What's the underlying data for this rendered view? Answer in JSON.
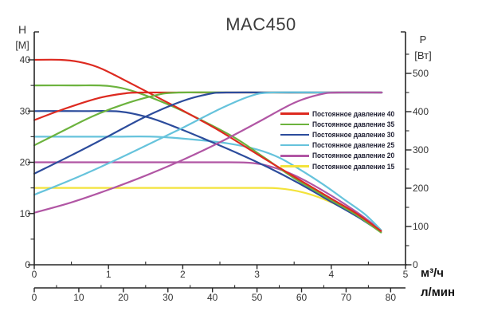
{
  "title": "MAC450",
  "axis_labels": {
    "left_symbol": "H",
    "left_unit": "[М]",
    "right_symbol": "P",
    "right_unit": "[Вт]",
    "bottom_primary_unit": "м³/ч",
    "bottom_secondary_unit": "л/мин"
  },
  "legend": [
    {
      "label": "Постоянное давление 40",
      "color": "#dd2a20"
    },
    {
      "label": "Постоянное давление 35",
      "color": "#6cb33e"
    },
    {
      "label": "Постоянное давление 30",
      "color": "#2c4c9c"
    },
    {
      "label": "Постоянное давление 25",
      "color": "#66c3dc"
    },
    {
      "label": "Постоянное давление 20",
      "color": "#b156a4"
    },
    {
      "label": "Постоянное давление 15",
      "color": "#f3e33b"
    }
  ],
  "colors": {
    "axis": "#262626",
    "tick_label": "#333333"
  },
  "chart_data": {
    "type": "line",
    "title": "MAC450",
    "x_axis": {
      "label": "м³/ч",
      "range": [
        0,
        5
      ],
      "major_ticks": [
        0,
        1,
        2,
        3,
        4,
        5
      ],
      "minor_ticks": [
        0.5,
        1.5,
        2.5,
        3.5,
        4.5
      ]
    },
    "x_axis_secondary": {
      "label": "л/мин",
      "range": [
        0,
        83.3
      ],
      "major_ticks": [
        0,
        10,
        20,
        30,
        40,
        50,
        60,
        70,
        80
      ],
      "minor_ticks": [
        5,
        15,
        25,
        35,
        45,
        55,
        65,
        75
      ]
    },
    "y_left": {
      "label": "H [М]",
      "range": [
        0,
        45.5
      ],
      "major_ticks": [
        0,
        10,
        20,
        30,
        40
      ],
      "minor_ticks": [
        5,
        15,
        25,
        35
      ]
    },
    "y_right": {
      "label": "P [Вт]",
      "range": [
        0,
        608
      ],
      "major_ticks": [
        0,
        100,
        200,
        300,
        400,
        500
      ],
      "minor_ticks": [
        50,
        150,
        250,
        350,
        450,
        550
      ]
    },
    "grid": false,
    "legend_position": "inside-right",
    "series": [
      {
        "name": "Напор, давление 15",
        "legend": "Постоянное давление 15",
        "color": "#f3e33b",
        "axis": "H",
        "points": [
          [
            0,
            15
          ],
          [
            1.2,
            15
          ],
          [
            2.4,
            15
          ],
          [
            3.0,
            15
          ],
          [
            3.3,
            14.9
          ],
          [
            3.6,
            14.2
          ],
          [
            3.9,
            12.8
          ],
          [
            4.2,
            10.8
          ],
          [
            4.45,
            8.8
          ],
          [
            4.67,
            6.6
          ]
        ]
      },
      {
        "name": "Напор, давление 20",
        "legend": "Постоянное давление 20",
        "color": "#b156a4",
        "axis": "H",
        "points": [
          [
            0,
            20
          ],
          [
            1.2,
            20
          ],
          [
            2.4,
            20
          ],
          [
            2.9,
            19.9
          ],
          [
            3.2,
            19.1
          ],
          [
            3.5,
            17.5
          ],
          [
            3.8,
            15.2
          ],
          [
            4.1,
            12.6
          ],
          [
            4.4,
            9.7
          ],
          [
            4.67,
            6.7
          ]
        ]
      },
      {
        "name": "Напор, давление 25",
        "legend": "Постоянное давление 25",
        "color": "#66c3dc",
        "axis": "H",
        "points": [
          [
            0,
            25
          ],
          [
            1.0,
            25
          ],
          [
            1.6,
            25
          ],
          [
            2.1,
            24.5
          ],
          [
            2.6,
            23.7
          ],
          [
            3.0,
            22.5
          ],
          [
            3.3,
            20.9
          ],
          [
            3.6,
            18.4
          ],
          [
            3.9,
            15.6
          ],
          [
            4.2,
            12.5
          ],
          [
            4.45,
            9.9
          ],
          [
            4.67,
            6.8
          ]
        ]
      },
      {
        "name": "Напор, давление 30",
        "legend": "Постоянное давление 30",
        "color": "#2c4c9c",
        "axis": "H",
        "points": [
          [
            0,
            30
          ],
          [
            0.65,
            30
          ],
          [
            1.15,
            29.9
          ],
          [
            1.55,
            28.7
          ],
          [
            1.95,
            26.6
          ],
          [
            2.35,
            24.2
          ],
          [
            2.75,
            21.7
          ],
          [
            3.15,
            19.0
          ],
          [
            3.55,
            16.0
          ],
          [
            4,
            12.3
          ],
          [
            4.35,
            9.4
          ],
          [
            4.67,
            6.4
          ]
        ]
      },
      {
        "name": "Напор, давление 35",
        "legend": "Постоянное давление 35",
        "color": "#6cb33e",
        "axis": "H",
        "points": [
          [
            0,
            35
          ],
          [
            0.55,
            35
          ],
          [
            1.0,
            34.9
          ],
          [
            1.35,
            33.8
          ],
          [
            1.8,
            31.3
          ],
          [
            2.2,
            28.6
          ],
          [
            2.7,
            24.8
          ],
          [
            3.1,
            20.9
          ],
          [
            3.5,
            16.9
          ],
          [
            4,
            12.6
          ],
          [
            4.35,
            9.6
          ],
          [
            4.67,
            6.3
          ]
        ]
      },
      {
        "name": "Напор, давление 40",
        "legend": "Постоянное давление 40",
        "color": "#dd2a20",
        "axis": "H",
        "points": [
          [
            0,
            40
          ],
          [
            0.35,
            40
          ],
          [
            0.6,
            39.6
          ],
          [
            0.85,
            38.6
          ],
          [
            1.1,
            36.9
          ],
          [
            1.5,
            33.9
          ],
          [
            2,
            30.1
          ],
          [
            2.5,
            26.1
          ],
          [
            3,
            21.6
          ],
          [
            3.5,
            17.2
          ],
          [
            4,
            12.9
          ],
          [
            4.35,
            9.9
          ],
          [
            4.67,
            6.6
          ]
        ]
      },
      {
        "name": "Мощность, давление 40",
        "legend": "Постоянное давление 40",
        "color": "#dd2a20",
        "axis": "P",
        "points": [
          [
            0,
            378
          ],
          [
            0.3,
            400
          ],
          [
            0.6,
            420
          ],
          [
            0.9,
            437
          ],
          [
            1.2,
            447
          ],
          [
            1.45,
            450
          ],
          [
            2.5,
            450
          ],
          [
            3.5,
            450
          ],
          [
            4.68,
            450
          ]
        ]
      },
      {
        "name": "Мощность, давление 35",
        "legend": "Постоянное давление 35",
        "color": "#6cb33e",
        "axis": "P",
        "points": [
          [
            0,
            312
          ],
          [
            0.4,
            351
          ],
          [
            0.8,
            389
          ],
          [
            1.2,
            419
          ],
          [
            1.6,
            441
          ],
          [
            1.95,
            450
          ],
          [
            3,
            450
          ],
          [
            4.68,
            450
          ]
        ]
      },
      {
        "name": "Мощность, давление 30",
        "legend": "Постоянное давление 30",
        "color": "#2c4c9c",
        "axis": "P",
        "points": [
          [
            0,
            238
          ],
          [
            0.5,
            286
          ],
          [
            1,
            336
          ],
          [
            1.5,
            387
          ],
          [
            2,
            428
          ],
          [
            2.35,
            446
          ],
          [
            2.6,
            450
          ],
          [
            3.5,
            450
          ],
          [
            4.68,
            450
          ]
        ]
      },
      {
        "name": "Мощность, давление 25",
        "legend": "Постоянное давление 25",
        "color": "#66c3dc",
        "axis": "P",
        "points": [
          [
            0,
            183
          ],
          [
            0.5,
            222
          ],
          [
            1,
            265
          ],
          [
            1.5,
            311
          ],
          [
            2,
            358
          ],
          [
            2.5,
            407
          ],
          [
            2.9,
            440
          ],
          [
            3.2,
            450
          ],
          [
            4,
            450
          ],
          [
            4.68,
            450
          ]
        ]
      },
      {
        "name": "Мощность, давление 20",
        "legend": "Постоянное давление 20",
        "color": "#b156a4",
        "axis": "P",
        "points": [
          [
            0,
            136
          ],
          [
            0.5,
            163
          ],
          [
            1,
            196
          ],
          [
            1.5,
            233
          ],
          [
            2,
            274
          ],
          [
            2.5,
            320
          ],
          [
            3,
            371
          ],
          [
            3.5,
            423
          ],
          [
            3.85,
            445
          ],
          [
            4.08,
            450
          ],
          [
            4.68,
            450
          ]
        ]
      }
    ]
  }
}
